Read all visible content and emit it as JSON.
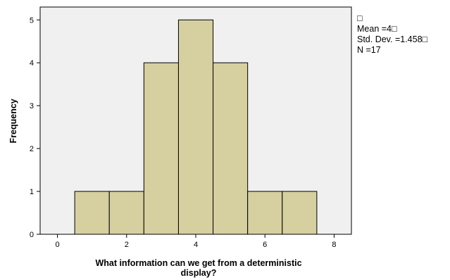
{
  "chart_data": {
    "type": "bar",
    "subtype": "histogram",
    "bins": [
      {
        "start": 0.5,
        "end": 1.5,
        "count": 1
      },
      {
        "start": 1.5,
        "end": 2.5,
        "count": 1
      },
      {
        "start": 2.5,
        "end": 3.5,
        "count": 4
      },
      {
        "start": 3.5,
        "end": 4.5,
        "count": 5
      },
      {
        "start": 4.5,
        "end": 5.5,
        "count": 4
      },
      {
        "start": 5.5,
        "end": 6.5,
        "count": 1
      },
      {
        "start": 6.5,
        "end": 7.5,
        "count": 1
      }
    ],
    "xlabel_line1": "What information can we get from a deterministic",
    "xlabel_line2": "display?",
    "ylabel": "Frequency",
    "xlim": [
      -0.5,
      8.5
    ],
    "ylim": [
      0,
      5.3
    ],
    "xticks": [
      0,
      2,
      4,
      6,
      8
    ],
    "yticks": [
      0,
      1,
      2,
      3,
      4,
      5
    ],
    "grid": false,
    "legend_position": "top-right, outside plot",
    "stats": {
      "symbol_line": "□",
      "mean": "Mean =4□",
      "std_dev": "Std. Dev. =1.458□",
      "n": "N =17"
    },
    "colors": {
      "bar_fill": "#d6d0a0",
      "bar_stroke": "#000000",
      "plot_background": "#f0f0f0"
    }
  }
}
